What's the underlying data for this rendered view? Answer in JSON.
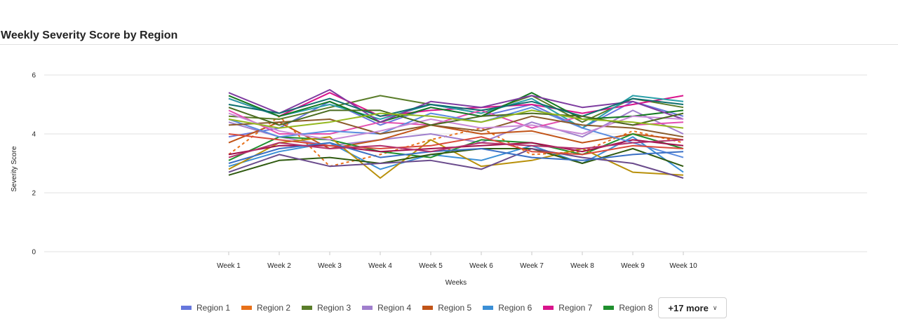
{
  "chart_data": {
    "type": "line",
    "title": "Weekly Severity Score by Region",
    "xlabel": "Weeks",
    "ylabel": "Severity Score",
    "ylim": [
      0,
      6.5
    ],
    "yticks": [
      0,
      2,
      4,
      6
    ],
    "grid": true,
    "legend_placement": "bottom",
    "categories": [
      "Week 1",
      "Week 2",
      "Week 3",
      "Week 4",
      "Week 5",
      "Week 6",
      "Week 7",
      "Week 8",
      "Week 9",
      "Week 10"
    ],
    "series": [
      {
        "name": "Region 1",
        "color": "#6677dd",
        "values": [
          3.9,
          4.2,
          5.1,
          4.3,
          4.9,
          4.6,
          5.0,
          4.2,
          5.1,
          4.6
        ]
      },
      {
        "name": "Region 2",
        "color": "#e8711a",
        "dashed": true,
        "values": [
          3.3,
          4.6,
          2.9,
          3.3,
          3.8,
          4.2,
          3.3,
          3.4,
          4.1,
          3.7
        ]
      },
      {
        "name": "Region 3",
        "color": "#5a7d2a",
        "values": [
          4.6,
          4.5,
          4.9,
          5.3,
          5.0,
          4.7,
          5.3,
          4.4,
          5.2,
          4.9
        ]
      },
      {
        "name": "Region 4",
        "color": "#a07fcd",
        "values": [
          4.4,
          3.9,
          3.6,
          3.8,
          4.0,
          3.7,
          4.4,
          3.9,
          4.8,
          4.0
        ]
      },
      {
        "name": "Region 5",
        "color": "#c15418",
        "values": [
          3.7,
          4.4,
          3.5,
          3.8,
          4.3,
          4.0,
          4.1,
          3.7,
          4.0,
          3.8
        ]
      },
      {
        "name": "Region 6",
        "color": "#3b8fd6",
        "values": [
          2.9,
          3.4,
          3.7,
          2.8,
          3.3,
          3.1,
          3.6,
          3.0,
          3.9,
          2.7
        ]
      },
      {
        "name": "Region 7",
        "color": "#d9148c",
        "values": [
          5.2,
          4.6,
          5.4,
          4.6,
          4.8,
          4.9,
          5.0,
          4.7,
          5.0,
          5.3
        ]
      },
      {
        "name": "Region 8",
        "color": "#1f8f2e",
        "values": [
          3.1,
          3.9,
          3.8,
          3.4,
          3.2,
          3.8,
          3.7,
          3.3,
          4.0,
          3.5
        ]
      },
      {
        "color": "#b8900a",
        "values": [
          2.8,
          3.7,
          3.9,
          2.5,
          3.8,
          2.9,
          3.1,
          3.5,
          2.7,
          2.6
        ]
      },
      {
        "color": "#2f5a10",
        "values": [
          2.6,
          3.1,
          3.2,
          3.0,
          3.3,
          3.5,
          3.5,
          3.0,
          3.5,
          2.9
        ]
      },
      {
        "color": "#6a4b8c",
        "values": [
          2.7,
          3.3,
          2.9,
          3.0,
          3.1,
          2.8,
          3.5,
          3.2,
          3.0,
          2.5
        ]
      },
      {
        "color": "#2a9fa8",
        "values": [
          5.2,
          4.6,
          5.0,
          4.5,
          5.0,
          4.7,
          5.2,
          4.2,
          5.3,
          5.1
        ]
      },
      {
        "color": "#e34fb0",
        "values": [
          4.8,
          4.0,
          4.0,
          4.4,
          4.3,
          4.8,
          4.2,
          4.6,
          4.3,
          4.4
        ]
      },
      {
        "color": "#13791f",
        "values": [
          5.3,
          4.6,
          5.1,
          4.4,
          4.9,
          4.6,
          5.4,
          4.5,
          4.6,
          4.8
        ]
      },
      {
        "color": "#7e3ca0",
        "values": [
          5.4,
          4.7,
          5.5,
          4.4,
          5.1,
          4.9,
          5.3,
          4.9,
          5.1,
          4.5
        ]
      },
      {
        "color": "#a1104a",
        "values": [
          3.3,
          3.6,
          3.6,
          3.4,
          3.5,
          3.6,
          3.7,
          3.4,
          3.8,
          3.6
        ]
      },
      {
        "color": "#5b8de0",
        "values": [
          4.5,
          3.9,
          4.1,
          4.0,
          4.7,
          4.4,
          4.9,
          4.2,
          3.7,
          3.2
        ]
      },
      {
        "color": "#8a5a2a",
        "values": [
          4.3,
          4.4,
          4.5,
          4.0,
          4.3,
          4.1,
          4.6,
          4.3,
          4.2,
          3.9
        ]
      },
      {
        "color": "#0e6e6e",
        "values": [
          5.0,
          4.7,
          5.2,
          4.6,
          5.0,
          4.8,
          5.1,
          4.6,
          5.2,
          5.0
        ]
      },
      {
        "color": "#c98ad6",
        "values": [
          4.7,
          4.1,
          3.8,
          4.1,
          4.5,
          4.2,
          4.3,
          4.0,
          4.6,
          4.5
        ]
      },
      {
        "color": "#4a6b1f",
        "values": [
          4.9,
          4.3,
          4.8,
          4.8,
          4.3,
          4.6,
          4.7,
          4.6,
          4.3,
          4.7
        ]
      },
      {
        "color": "#d84a3a",
        "values": [
          4.0,
          3.8,
          3.6,
          3.5,
          3.6,
          3.9,
          3.4,
          3.3,
          3.6,
          3.5
        ]
      },
      {
        "color": "#3a6fc4",
        "values": [
          3.0,
          3.5,
          3.7,
          3.2,
          3.4,
          3.5,
          3.2,
          3.1,
          3.3,
          3.4
        ]
      },
      {
        "color": "#95b820",
        "values": [
          4.5,
          4.2,
          4.4,
          4.7,
          4.6,
          4.4,
          4.8,
          4.5,
          4.4,
          4.2
        ]
      },
      {
        "color": "#b3306b",
        "values": [
          3.2,
          3.7,
          3.5,
          3.6,
          3.4,
          3.7,
          3.6,
          3.5,
          3.7,
          3.8
        ]
      }
    ]
  },
  "legend": {
    "more_label": "+17 more",
    "more_icon": "chevron-down-icon"
  }
}
